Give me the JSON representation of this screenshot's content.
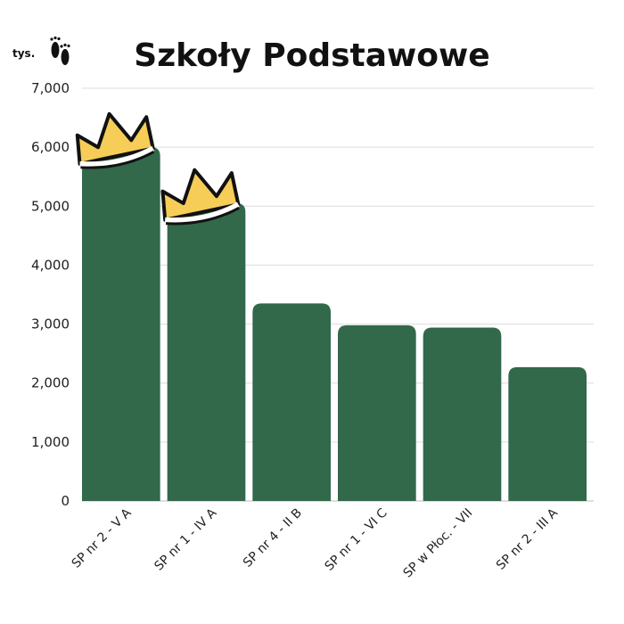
{
  "chart_data": {
    "type": "bar",
    "title": "Szkoły Podstawowe",
    "unit_label": "tys.",
    "categories": [
      "SP nr 2 - V A",
      "SP nr 1 - IV A",
      "SP nr 4 - II B",
      "SP nr 1 - VI C",
      "SP w Płoc. - VII",
      "SP nr 2 - III A"
    ],
    "values": [
      6000,
      5050,
      3350,
      2980,
      2940,
      2270
    ],
    "ylim": [
      0,
      7000
    ],
    "yticks": [
      "0",
      "1,000",
      "2,000",
      "3,000",
      "4,000",
      "5,000",
      "6,000",
      "7,000"
    ],
    "grid": true,
    "crowned_categories": [
      "SP nr 2 - V A",
      "SP nr 1 - IV A"
    ],
    "colors": {
      "bar": "#31694a",
      "crown": "#f6cd57",
      "outline": "#111111"
    },
    "icons": {
      "unit": "footprints-icon",
      "crown": "crown-icon"
    }
  }
}
